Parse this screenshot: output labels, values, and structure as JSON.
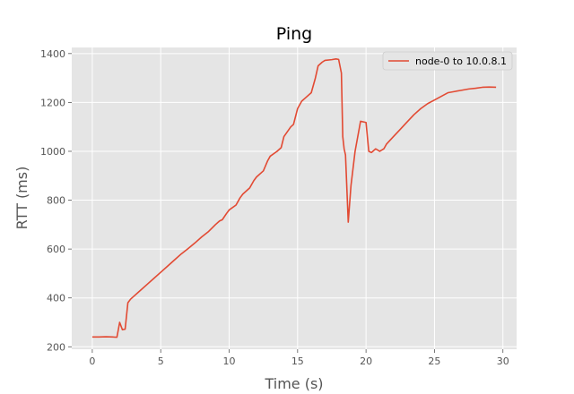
{
  "chart_data": {
    "type": "line",
    "title": "Ping",
    "xlabel": "Time (s)",
    "ylabel": "RTT (ms)",
    "xlim": [
      -1.5,
      31
    ],
    "ylim": [
      190,
      1425
    ],
    "xticks": [
      0,
      5,
      10,
      15,
      20,
      25,
      30
    ],
    "yticks": [
      200,
      400,
      600,
      800,
      1000,
      1200,
      1400
    ],
    "grid": true,
    "legend_position": "top-right",
    "colors": {
      "series": "#E24A33",
      "plot_bg": "#E5E5E5",
      "grid": "#FFFFFF"
    },
    "series": [
      {
        "name": "node-0 to 10.0.8.1",
        "x": [
          0,
          0.5,
          1,
          1.5,
          1.8,
          2.0,
          2.2,
          2.4,
          2.6,
          2.8,
          3.0,
          3.5,
          4.0,
          4.5,
          5.0,
          5.5,
          6.0,
          6.5,
          7.0,
          7.5,
          8.0,
          8.5,
          9.0,
          9.3,
          9.5,
          9.8,
          10.0,
          10.5,
          10.8,
          11.0,
          11.5,
          11.8,
          12.0,
          12.5,
          12.8,
          13.0,
          13.5,
          13.8,
          14.0,
          14.5,
          14.7,
          15.0,
          15.3,
          15.6,
          16.0,
          16.3,
          16.5,
          16.8,
          17.0,
          17.5,
          17.8,
          18.0,
          18.2,
          18.3,
          18.4,
          18.5,
          18.7,
          18.9,
          19.2,
          19.6,
          20.0,
          20.2,
          20.4,
          20.7,
          21.0,
          21.3,
          21.5,
          22.0,
          22.5,
          23.0,
          23.5,
          24.0,
          24.5,
          25.0,
          25.5,
          26.0,
          26.5,
          27.0,
          27.5,
          28.0,
          28.5,
          29.0,
          29.5
        ],
        "y": [
          240,
          240,
          241,
          240,
          239,
          300,
          270,
          272,
          380,
          395,
          405,
          430,
          455,
          480,
          505,
          530,
          555,
          580,
          602,
          625,
          650,
          672,
          700,
          715,
          720,
          745,
          760,
          780,
          810,
          825,
          850,
          880,
          895,
          920,
          960,
          980,
          1000,
          1015,
          1060,
          1100,
          1110,
          1175,
          1205,
          1220,
          1240,
          1300,
          1350,
          1365,
          1372,
          1375,
          1378,
          1376,
          1320,
          1060,
          1010,
          985,
          710,
          860,
          1000,
          1123,
          1118,
          1000,
          995,
          1010,
          1000,
          1010,
          1030,
          1060,
          1090,
          1120,
          1150,
          1175,
          1195,
          1210,
          1225,
          1240,
          1245,
          1250,
          1255,
          1258,
          1262,
          1263,
          1262
        ]
      }
    ]
  }
}
